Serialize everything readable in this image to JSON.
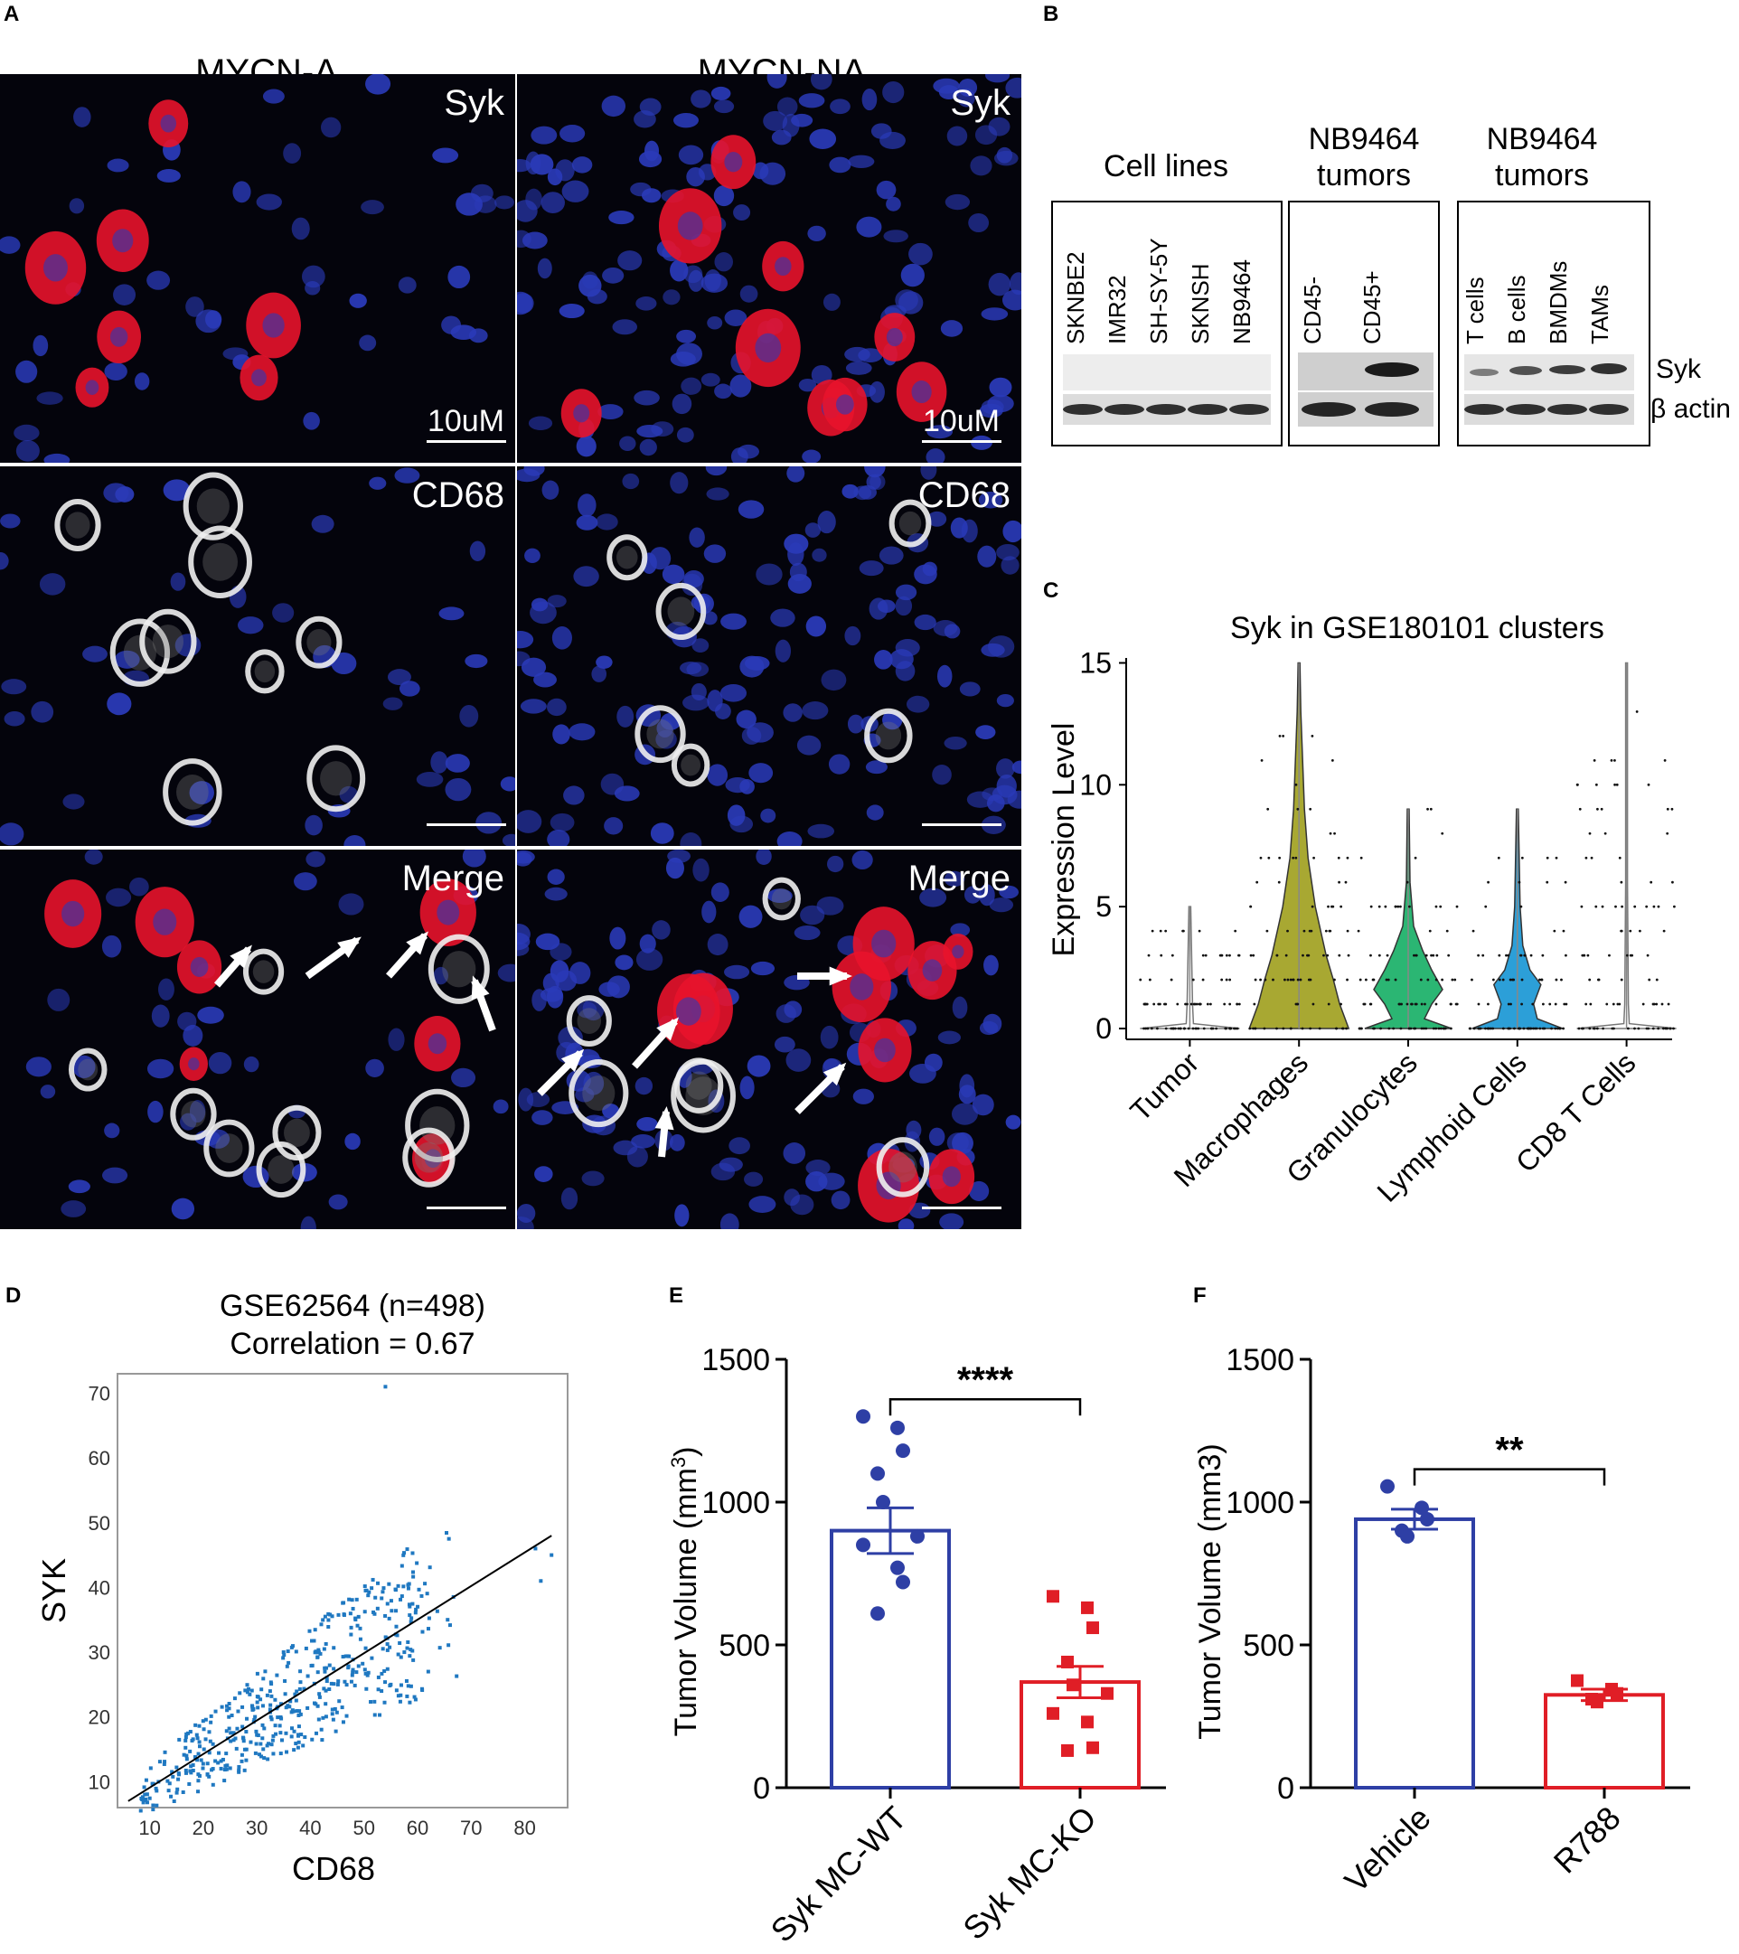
{
  "panel_letters": {
    "a": "A",
    "b": "B",
    "c": "C",
    "d": "D",
    "e": "E",
    "f": "F"
  },
  "panel_a": {
    "col1_title": "MYCN-A",
    "col2_title": "MYCN-NA",
    "row_labels": [
      "Syk",
      "CD68",
      "Merge"
    ],
    "scale_label": "10uM",
    "colors": {
      "syk": "#e8132b",
      "cd68": "#f0f0f0",
      "dapi": "#2a3ab8",
      "background": "#04040c",
      "arrow": "#ffffff"
    }
  },
  "panel_b": {
    "group1_title": "Cell lines",
    "group2_title": "NB9464\ntumors",
    "group3_title": "NB9464\ntumors",
    "group1_lanes": [
      "SKNBE2",
      "IMR32",
      "SH-SY-5Y",
      "SKNSH",
      "NB9464"
    ],
    "group2_lanes": [
      "CD45-",
      "CD45+"
    ],
    "group3_lanes": [
      "T cells",
      "B cells",
      "BMDMs",
      "TAMs"
    ],
    "band_labels": [
      "Syk",
      "β actin"
    ]
  },
  "panel_d_text": {
    "title_line1": "GSE62564 (n=498)",
    "title_line2": "Correlation = 0.67"
  },
  "chart_data": [
    {
      "panel": "C",
      "type": "violin",
      "title": "Syk in GSE180101 clusters",
      "xlabel": "",
      "ylabel": "Expression Level",
      "categories": [
        "Tumor",
        "Macrophages",
        "Granulocytes",
        "Lymphoid Cells",
        "CD8 T Cells"
      ],
      "colors": [
        "#1a1a1a",
        "#a8a832",
        "#2bb673",
        "#2c9fd8",
        "#1a1a1a"
      ],
      "max_values": [
        5,
        15,
        9,
        9,
        15
      ],
      "ylim": [
        0,
        15.5
      ],
      "yticks": [
        0,
        5,
        10,
        15
      ]
    },
    {
      "panel": "D",
      "type": "scatter",
      "title": "GSE62564 (n=498)",
      "subtitle": "Correlation = 0.67",
      "xlabel": "CD68",
      "ylabel": "SYK",
      "xlim": [
        4,
        88
      ],
      "ylim": [
        6,
        73
      ],
      "xticks": [
        10,
        20,
        30,
        40,
        50,
        60,
        70,
        80
      ],
      "yticks": [
        10,
        20,
        30,
        40,
        50,
        60,
        70
      ],
      "point_color": "#1f78c1",
      "trend_line": {
        "x1": 6,
        "y1": 7,
        "x2": 85,
        "y2": 48
      },
      "outliers": [
        [
          54,
          71
        ],
        [
          83,
          41
        ],
        [
          85,
          45
        ],
        [
          82,
          46
        ],
        [
          55,
          25
        ],
        [
          62,
          27
        ]
      ]
    },
    {
      "panel": "E",
      "type": "bar",
      "categories": [
        "Syk MC-WT",
        "Syk MC-KO"
      ],
      "values": [
        900,
        370
      ],
      "sem": [
        80,
        55
      ],
      "ylabel": "Tumor Volume (mm",
      "ylabel_sup": "3",
      "ylabel_end": ")",
      "ylim": [
        0,
        1500
      ],
      "yticks": [
        0,
        500,
        1000,
        1500
      ],
      "significance": "****",
      "colors": [
        "#2e3fa5",
        "#e01e26"
      ],
      "points": [
        [
          1300,
          1260,
          1180,
          1100,
          1000,
          880,
          850,
          770,
          720,
          610
        ],
        [
          670,
          630,
          560,
          440,
          360,
          330,
          260,
          230,
          140,
          130
        ]
      ]
    },
    {
      "panel": "F",
      "type": "bar",
      "categories": [
        "Vehicle",
        "R788"
      ],
      "values": [
        940,
        325
      ],
      "sem": [
        35,
        20
      ],
      "ylabel": "Tumor Volume (mm3)",
      "ylim": [
        0,
        1500
      ],
      "yticks": [
        0,
        500,
        1000,
        1500
      ],
      "significance": "**",
      "colors": [
        "#2e3fa5",
        "#e01e26"
      ],
      "points": [
        [
          1055,
          980,
          940,
          900,
          880
        ],
        [
          375,
          345,
          330,
          310,
          300
        ]
      ]
    }
  ]
}
